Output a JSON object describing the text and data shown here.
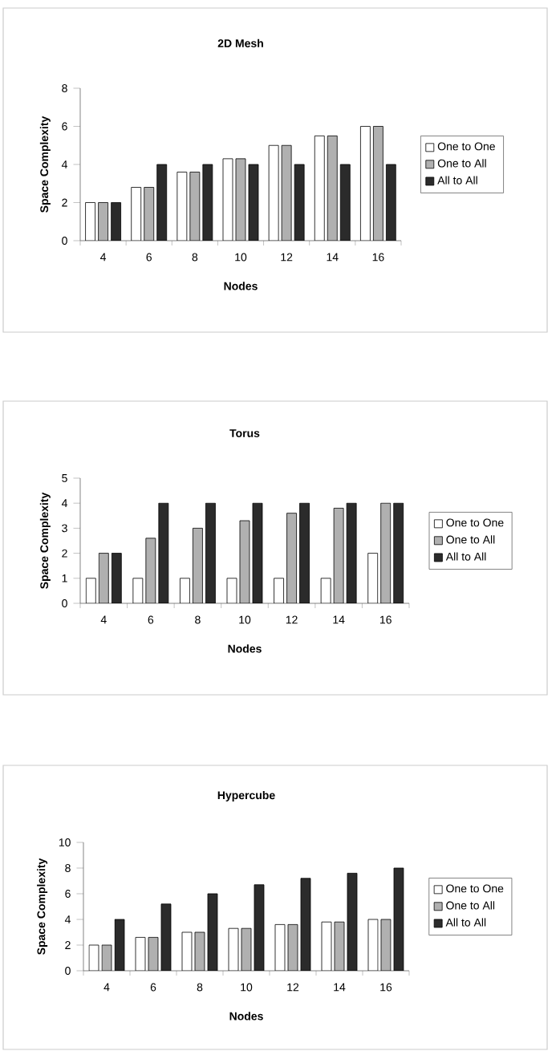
{
  "chart_data": [
    {
      "type": "bar",
      "title": "2D Mesh",
      "xlabel": "Nodes",
      "ylabel": "Space Complexity",
      "categories": [
        "4",
        "6",
        "8",
        "10",
        "12",
        "14",
        "16"
      ],
      "ylim": [
        0,
        8
      ],
      "yticks": [
        0,
        2,
        4,
        6,
        8
      ],
      "legend": "right",
      "series": [
        {
          "name": "One to One",
          "color": "#ffffff",
          "values": [
            2,
            2.8,
            3.6,
            4.3,
            5,
            5.5,
            6
          ]
        },
        {
          "name": "One to All",
          "color": "#b0b0b0",
          "values": [
            2,
            2.8,
            3.6,
            4.3,
            5,
            5.5,
            6
          ]
        },
        {
          "name": "All to All",
          "color": "#2b2b2b",
          "values": [
            2,
            4,
            4,
            4,
            4,
            4,
            4
          ]
        }
      ]
    },
    {
      "type": "bar",
      "title": "Torus",
      "xlabel": "Nodes",
      "ylabel": "Space Complexity",
      "categories": [
        "4",
        "6",
        "8",
        "10",
        "12",
        "14",
        "16"
      ],
      "ylim": [
        0,
        5
      ],
      "yticks": [
        0,
        1,
        2,
        3,
        4,
        5
      ],
      "legend": "right",
      "series": [
        {
          "name": "One to One",
          "color": "#ffffff",
          "values": [
            1,
            1,
            1,
            1,
            1,
            1,
            2
          ]
        },
        {
          "name": "One to All",
          "color": "#b0b0b0",
          "values": [
            2,
            2.6,
            3,
            3.3,
            3.6,
            3.8,
            4
          ]
        },
        {
          "name": "All to All",
          "color": "#2b2b2b",
          "values": [
            2,
            4,
            4,
            4,
            4,
            4,
            4
          ]
        }
      ]
    },
    {
      "type": "bar",
      "title": "Hypercube",
      "xlabel": "Nodes",
      "ylabel": "Space Complexity",
      "categories": [
        "4",
        "6",
        "8",
        "10",
        "12",
        "14",
        "16"
      ],
      "ylim": [
        0,
        10
      ],
      "yticks": [
        0,
        2,
        4,
        6,
        8,
        10
      ],
      "legend": "right",
      "series": [
        {
          "name": "One to One",
          "color": "#ffffff",
          "values": [
            2,
            2.6,
            3,
            3.3,
            3.6,
            3.8,
            4
          ]
        },
        {
          "name": "One to All",
          "color": "#b0b0b0",
          "values": [
            2,
            2.6,
            3,
            3.3,
            3.6,
            3.8,
            4
          ]
        },
        {
          "name": "All to All",
          "color": "#2b2b2b",
          "values": [
            4,
            5.2,
            6,
            6.7,
            7.2,
            7.6,
            8
          ]
        }
      ]
    }
  ]
}
